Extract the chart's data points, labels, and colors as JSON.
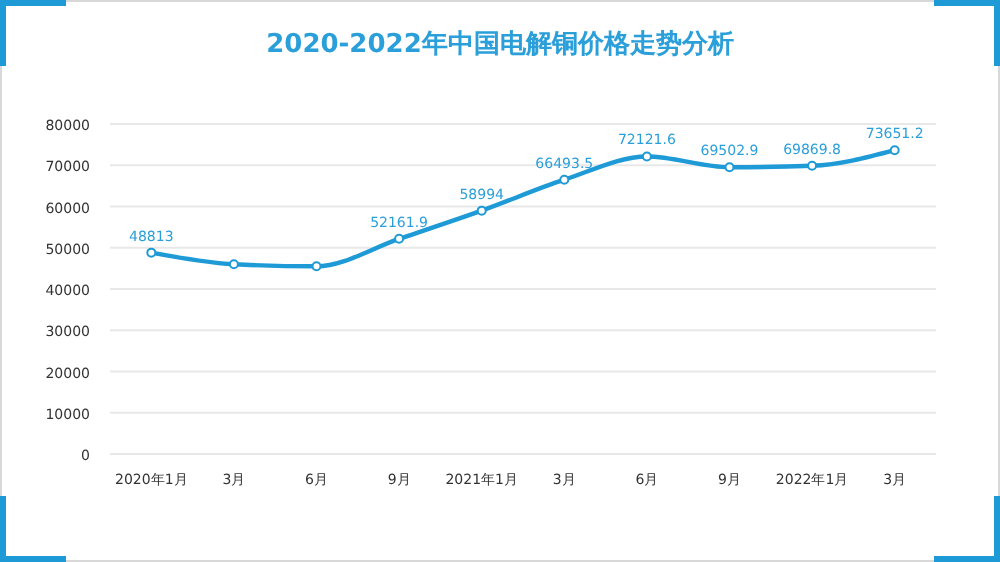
{
  "chart_data": {
    "type": "line",
    "title": "2020-2022年中国电解铜价格走势分析",
    "categories": [
      "2020年1月",
      "3月",
      "6月",
      "9月",
      "2021年1月",
      "3月",
      "6月",
      "9月",
      "2022年1月",
      "3月"
    ],
    "values": [
      48813,
      46000,
      45500,
      52161.9,
      58994,
      66493.5,
      72121.6,
      69502.9,
      69869.8,
      73651.2
    ],
    "value_labels": [
      "48813",
      null,
      null,
      "52161.9",
      "58994",
      "66493.5",
      "72121.6",
      "69502.9",
      "69869.8",
      "73651.2"
    ],
    "color": "#1e9ad6",
    "ylim": [
      0,
      80000
    ],
    "yticks": [
      0,
      10000,
      20000,
      30000,
      40000,
      50000,
      60000,
      70000,
      80000
    ],
    "grid": "y",
    "marker": "circle",
    "line_style": "solid"
  }
}
